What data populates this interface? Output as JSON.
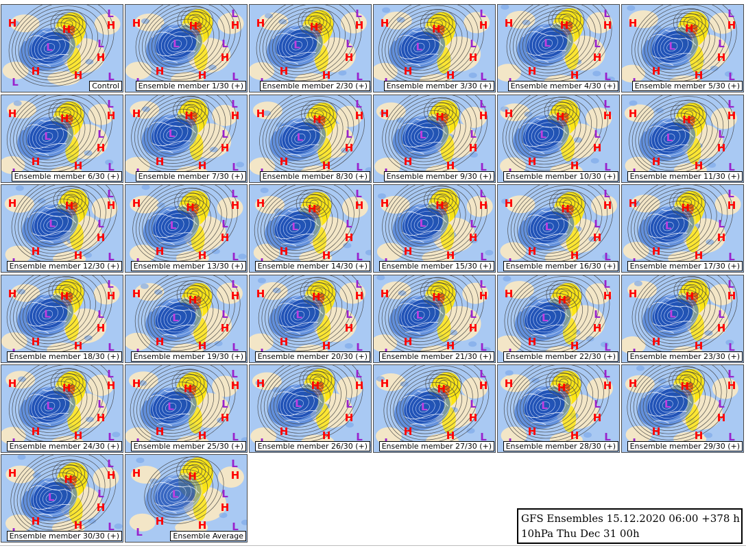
{
  "header": {
    "title_line1": "GFS Ensembles 15.12.2020 06:00 +378 h",
    "title_line2": "10hPa Thu Dec 31 00h"
  },
  "colors": {
    "ocean": "#a9c9f3",
    "land_cold": "#f7e8c4",
    "negative_anomaly": "#1e50b4",
    "positive_anomaly": "#ffe600",
    "strong_positive": "#d43a12",
    "contour": "#404040",
    "coastline": "#ffffff",
    "high_marker": "#ff0000",
    "low_marker": "#9922cc",
    "label_bg": "#ffffff"
  },
  "icons": {
    "high": "H",
    "low": "L"
  },
  "panels": [
    {
      "label": "Control",
      "variant": "control"
    },
    {
      "label": "Ensemble member 1/30 (+)"
    },
    {
      "label": "Ensemble member 2/30 (+)"
    },
    {
      "label": "Ensemble member 3/30 (+)"
    },
    {
      "label": "Ensemble member 4/30 (+)"
    },
    {
      "label": "Ensemble member 5/30 (+)"
    },
    {
      "label": "Ensemble member 6/30 (+)"
    },
    {
      "label": "Ensemble member 7/30 (+)"
    },
    {
      "label": "Ensemble member 8/30 (+)"
    },
    {
      "label": "Ensemble member 9/30 (+)"
    },
    {
      "label": "Ensemble member 10/30 (+)"
    },
    {
      "label": "Ensemble member 11/30 (+)"
    },
    {
      "label": "Ensemble member 12/30 (+)"
    },
    {
      "label": "Ensemble member 13/30 (+)"
    },
    {
      "label": "Ensemble member 14/30 (+)"
    },
    {
      "label": "Ensemble member 15/30 (+)"
    },
    {
      "label": "Ensemble member 16/30 (+)"
    },
    {
      "label": "Ensemble member 17/30 (+)"
    },
    {
      "label": "Ensemble member 18/30 (+)"
    },
    {
      "label": "Ensemble member 19/30 (+)"
    },
    {
      "label": "Ensemble member 20/30 (+)"
    },
    {
      "label": "Ensemble member 21/30 (+)"
    },
    {
      "label": "Ensemble member 22/30 (+)"
    },
    {
      "label": "Ensemble member 23/30 (+)"
    },
    {
      "label": "Ensemble member 24/30 (+)"
    },
    {
      "label": "Ensemble member 25/30 (+)"
    },
    {
      "label": "Ensemble member 26/30 (+)"
    },
    {
      "label": "Ensemble member 27/30 (+)"
    },
    {
      "label": "Ensemble member 28/30 (+)"
    },
    {
      "label": "Ensemble member 29/30 (+)"
    },
    {
      "label": "Ensemble member 30/30 (+)"
    },
    {
      "label": "Ensemble Average",
      "variant": "average"
    }
  ]
}
